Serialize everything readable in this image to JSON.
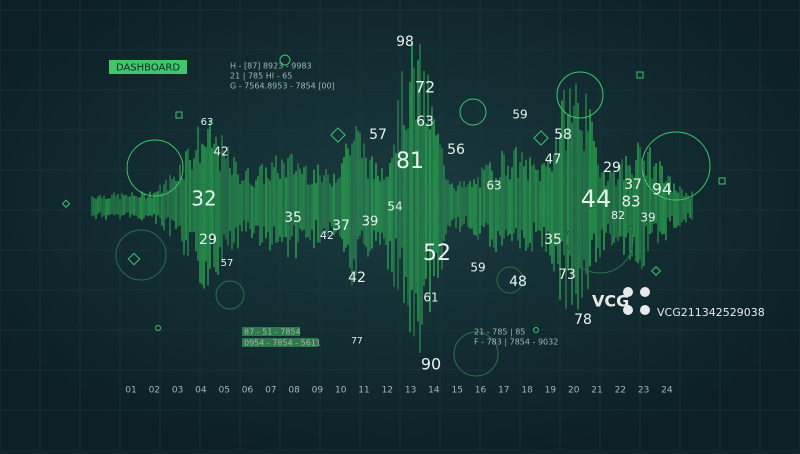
{
  "header": {
    "title": "DASHBOARD"
  },
  "info_lines": [
    "H - [87] 8923 - 9983",
    "21     |     785          HI - 65",
    "G - 7564.8953 - 7854 [00]",
    "21 - 785 | 85",
    "F - 783 | 7854 - 9032"
  ],
  "boxed_lines": [
    "87 - 51 - 7854",
    "0954 - 7854 - 5611"
  ],
  "axis_labels": [
    "01",
    "02",
    "03",
    "04",
    "05",
    "06",
    "07",
    "08",
    "09",
    "10",
    "11",
    "12",
    "13",
    "14",
    "15",
    "16",
    "17",
    "18",
    "19",
    "20",
    "21",
    "22",
    "23",
    "24"
  ],
  "numbers": [
    "98",
    "72",
    "81",
    "63",
    "57",
    "56",
    "59",
    "58",
    "47",
    "29",
    "37",
    "94",
    "44",
    "83",
    "32",
    "42",
    "63",
    "29",
    "35",
    "37",
    "39",
    "42",
    "52",
    "59",
    "48",
    "61",
    "42",
    "77",
    "90",
    "35",
    "73",
    "78",
    "63",
    "39",
    "82",
    "54",
    "57"
  ],
  "watermark": {
    "logo": "VCG",
    "id": "VCG211342529038"
  }
}
